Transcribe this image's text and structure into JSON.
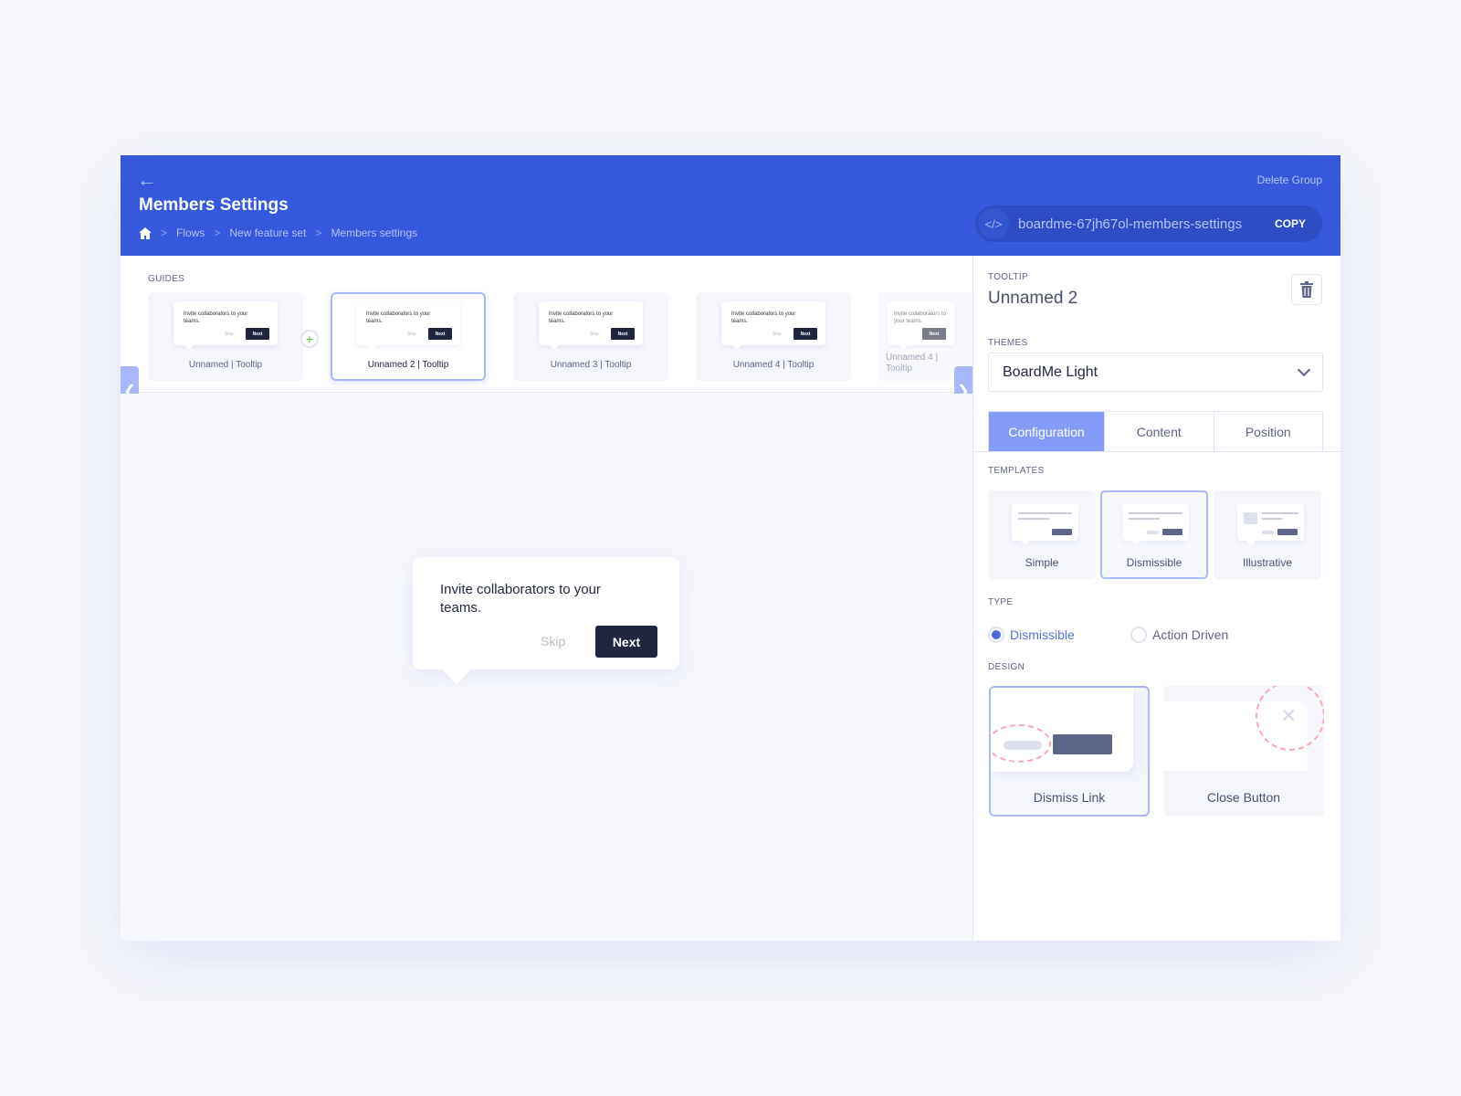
{
  "header": {
    "title": "Members Settings",
    "back_icon": "arrow-left-icon",
    "breadcrumb": [
      "Flows",
      "New feature set",
      "Members settings"
    ],
    "delete_label": "Delete Group",
    "slug": "boardme-67jh67ol-members-settings",
    "copy_label": "COPY",
    "accent": "#3558dc"
  },
  "guides": {
    "label": "GUIDES",
    "items": [
      {
        "name": "Unnamed | Tooltip",
        "text": "Invite collaborators to your teams.",
        "skip": "Skip",
        "next": "Next"
      },
      {
        "name": "Unnamed 2 | Tooltip",
        "text": "Invite collaborators to your teams.",
        "skip": "Skip",
        "next": "Next",
        "selected": true
      },
      {
        "name": "Unnamed 3 | Tooltip",
        "text": "Invite collaborators to your teams.",
        "skip": "Skip",
        "next": "Next"
      },
      {
        "name": "Unnamed 4 | Tooltip",
        "text": "Invite collaborators to your teams.",
        "skip": "Skip",
        "next": "Next"
      },
      {
        "name": "Unnamed 4 | Tooltip",
        "text": "Invite collaborators to your teams.",
        "skip": "Skip",
        "next": "Next"
      }
    ]
  },
  "preview": {
    "text": "Invite collaborators to your teams.",
    "skip": "Skip",
    "next": "Next"
  },
  "panel": {
    "tooltip_label": "TOOLTIP",
    "tooltip_name": "Unnamed 2",
    "themes_label": "THEMES",
    "theme": "BoardMe Light",
    "tabs": [
      "Configuration",
      "Content",
      "Position"
    ],
    "active_tab": "Configuration",
    "templates_label": "TEMPLATES",
    "templates": [
      "Simple",
      "Dismissible",
      "Illustrative"
    ],
    "selected_template": "Dismissible",
    "type_label": "TYPE",
    "types": [
      "Dismissible",
      "Action Driven"
    ],
    "selected_type": "Dismissible",
    "design_label": "DESIGN",
    "designs": [
      "Dismiss Link",
      "Close Button"
    ],
    "selected_design": "Dismiss Link"
  }
}
